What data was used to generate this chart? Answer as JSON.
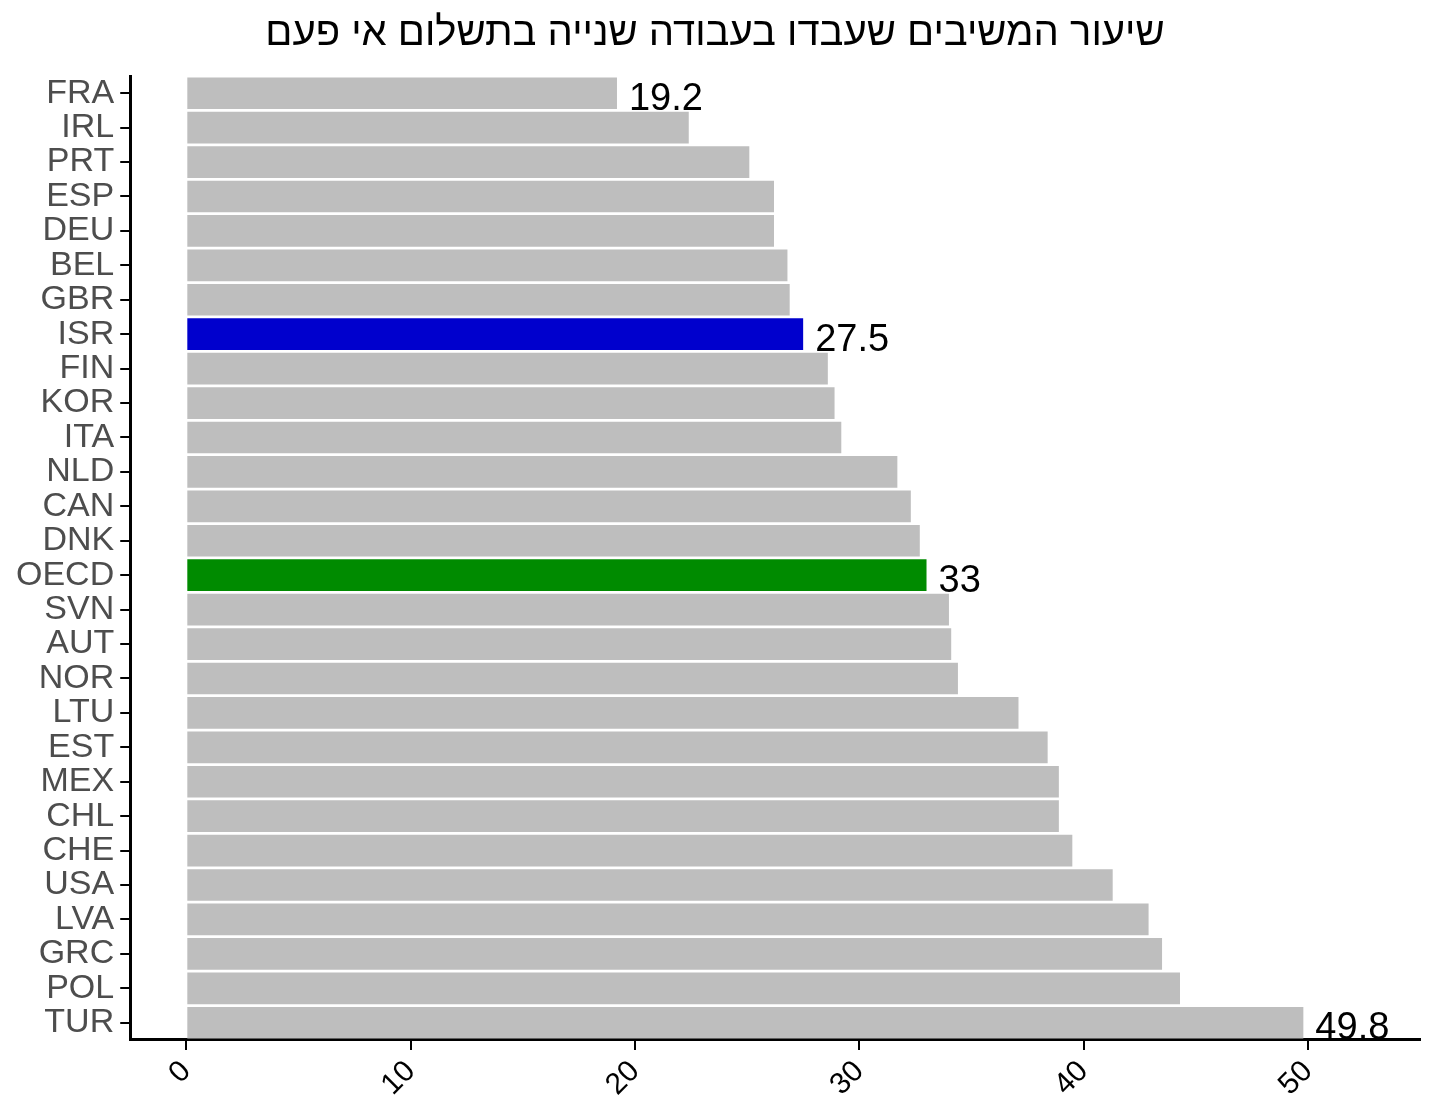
{
  "chart_data": {
    "type": "bar",
    "orientation": "horizontal",
    "title": "שיעור המשיבים שעבדו בעבודה שנייה בתשלום אי פעם",
    "categories": [
      "FRA",
      "IRL",
      "PRT",
      "ESP",
      "DEU",
      "BEL",
      "GBR",
      "ISR",
      "FIN",
      "KOR",
      "ITA",
      "NLD",
      "CAN",
      "DNK",
      "OECD",
      "SVN",
      "AUT",
      "NOR",
      "LTU",
      "EST",
      "MEX",
      "CHL",
      "CHE",
      "USA",
      "LVA",
      "GRC",
      "POL",
      "TUR"
    ],
    "values": [
      19.2,
      22.4,
      25.1,
      26.2,
      26.2,
      26.8,
      26.9,
      27.5,
      28.6,
      28.9,
      29.2,
      31.7,
      32.3,
      32.7,
      33,
      34.0,
      34.1,
      34.4,
      37.1,
      38.4,
      38.9,
      38.9,
      39.5,
      41.3,
      42.9,
      43.5,
      44.3,
      49.8
    ],
    "colors": [
      "#bebebe",
      "#bebebe",
      "#bebebe",
      "#bebebe",
      "#bebebe",
      "#bebebe",
      "#bebebe",
      "#0000cd",
      "#bebebe",
      "#bebebe",
      "#bebebe",
      "#bebebe",
      "#bebebe",
      "#bebebe",
      "#008b00",
      "#bebebe",
      "#bebebe",
      "#bebebe",
      "#bebebe",
      "#bebebe",
      "#bebebe",
      "#bebebe",
      "#bebebe",
      "#bebebe",
      "#bebebe",
      "#bebebe",
      "#bebebe",
      "#bebebe"
    ],
    "value_labels": [
      "19.2",
      null,
      null,
      null,
      null,
      null,
      null,
      "27.5",
      null,
      null,
      null,
      null,
      null,
      null,
      "33",
      null,
      null,
      null,
      null,
      null,
      null,
      null,
      null,
      null,
      null,
      null,
      null,
      "49.8"
    ],
    "xlim": [
      -2.5,
      55
    ],
    "xticks": [
      0,
      10,
      20,
      30,
      40,
      50
    ],
    "grid": false,
    "legend": false
  }
}
